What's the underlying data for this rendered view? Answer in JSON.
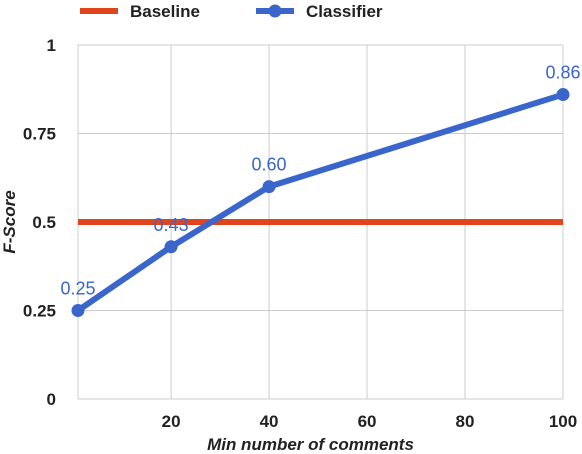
{
  "chart_data": {
    "type": "line",
    "xlabel": "Min number of comments",
    "ylabel": "F-Score",
    "xlim": [
      1,
      100
    ],
    "ylim": [
      0,
      1
    ],
    "x_ticks": [
      20,
      40,
      60,
      80,
      100
    ],
    "y_ticks": [
      0,
      0.25,
      0.5,
      0.75,
      1
    ],
    "y_tick_labels": [
      "0",
      "0.25",
      "0.5",
      "0.75",
      "1"
    ],
    "grid": true,
    "legend_position": "top-left",
    "series": [
      {
        "name": "Baseline",
        "color": "#e0441c",
        "x": [
          1,
          100
        ],
        "y": [
          0.5,
          0.5
        ],
        "markers": false
      },
      {
        "name": "Classifier",
        "color": "#3a66cc",
        "x": [
          1,
          20,
          40,
          100
        ],
        "y": [
          0.25,
          0.43,
          0.6,
          0.86
        ],
        "markers": true,
        "data_labels": [
          "0.25",
          "0.43",
          "0.60",
          "0.86"
        ]
      }
    ]
  }
}
